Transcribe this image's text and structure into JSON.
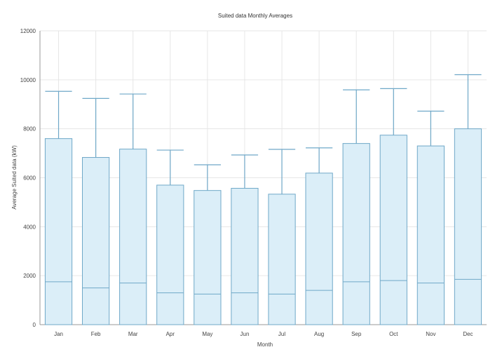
{
  "chart_data": {
    "type": "box",
    "title": "Suited data Monthly Averages",
    "xlabel": "Month",
    "ylabel": "Average Suited data (kW)",
    "ylim": [
      0,
      12000
    ],
    "yticks": [
      0,
      2000,
      4000,
      6000,
      8000,
      10000,
      12000
    ],
    "grid": true,
    "categories": [
      "Jan",
      "Feb",
      "Mar",
      "Apr",
      "May",
      "Jun",
      "Jul",
      "Aug",
      "Sep",
      "Oct",
      "Nov",
      "Dec"
    ],
    "boxes": [
      {
        "min": 0,
        "lower": 1750,
        "upper": 7600,
        "max": 9530
      },
      {
        "min": 0,
        "lower": 1500,
        "upper": 6830,
        "max": 9240
      },
      {
        "min": 0,
        "lower": 1700,
        "upper": 7170,
        "max": 9420
      },
      {
        "min": 0,
        "lower": 1300,
        "upper": 5700,
        "max": 7130
      },
      {
        "min": 0,
        "lower": 1250,
        "upper": 5480,
        "max": 6530
      },
      {
        "min": 0,
        "lower": 1300,
        "upper": 5570,
        "max": 6930
      },
      {
        "min": 0,
        "lower": 1250,
        "upper": 5330,
        "max": 7160
      },
      {
        "min": 0,
        "lower": 1400,
        "upper": 6190,
        "max": 7220
      },
      {
        "min": 0,
        "lower": 1750,
        "upper": 7400,
        "max": 9590
      },
      {
        "min": 0,
        "lower": 1800,
        "upper": 7740,
        "max": 9640
      },
      {
        "min": 0,
        "lower": 1700,
        "upper": 7300,
        "max": 8720
      },
      {
        "min": 0,
        "lower": 1850,
        "upper": 8000,
        "max": 10210
      }
    ]
  }
}
